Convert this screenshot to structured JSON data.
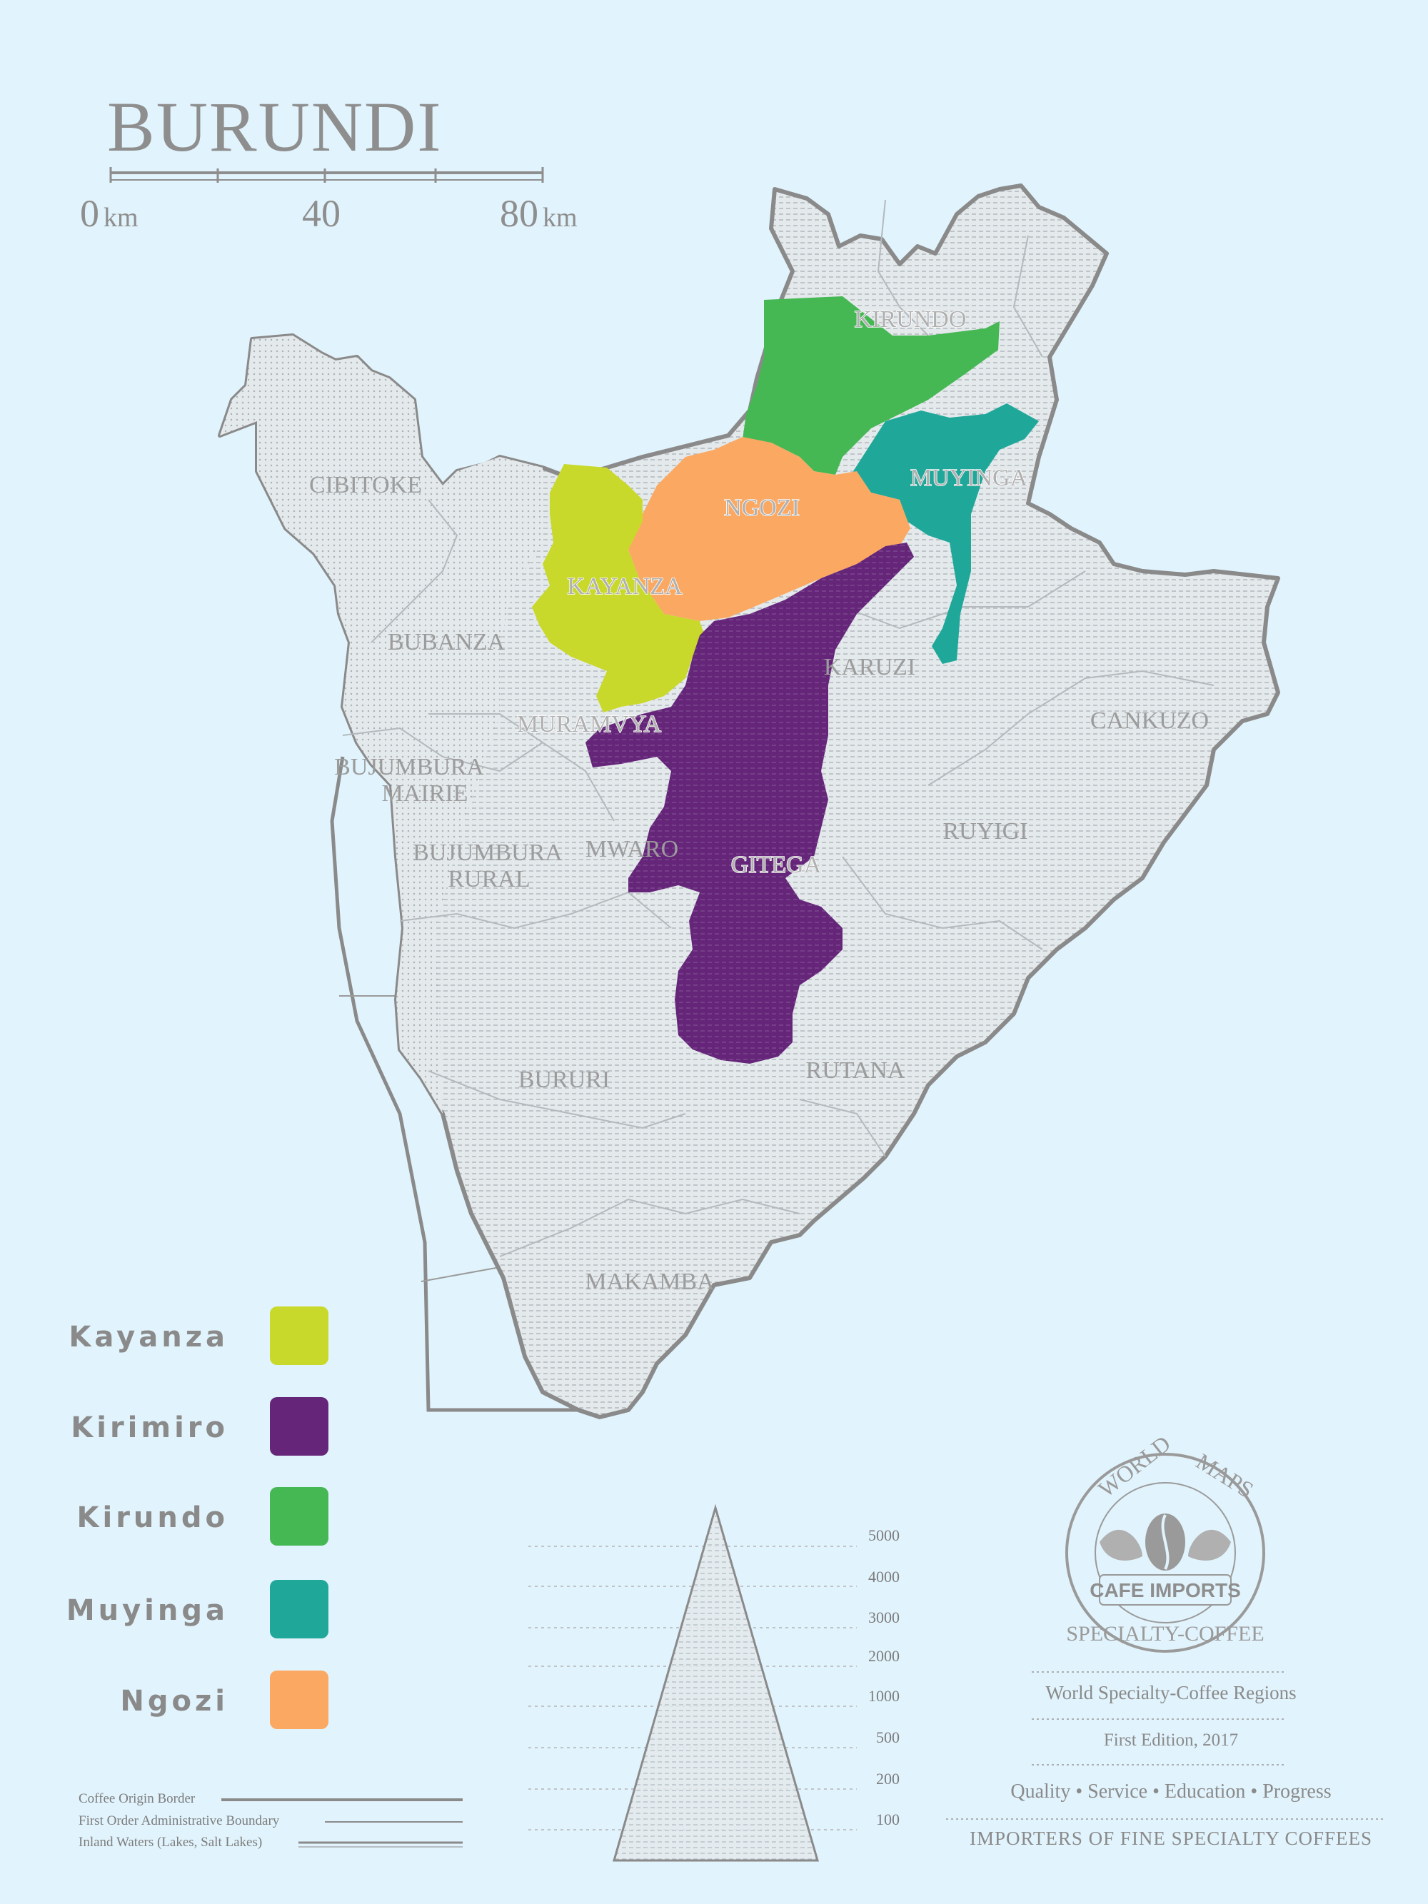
{
  "title": "BURUNDI",
  "scale_bar": {
    "labels": [
      {
        "value": "0",
        "unit": "km"
      },
      {
        "value": "40",
        "unit": ""
      },
      {
        "value": "80",
        "unit": "km"
      }
    ]
  },
  "provinces": [
    "CIBITOKE",
    "BUBANZA",
    "BUJUMBURA",
    "MAIRIE",
    "BUJUMBURA",
    "RURAL",
    "MWARO",
    "BURURI",
    "MAKAMBA",
    "RUTANA",
    "RUYIGI",
    "CANKUZO",
    "KARUZI"
  ],
  "highlighted_provinces": {
    "kirundo": "KIRUNDO",
    "muyinga": "MUYINGA",
    "ngozi": "NGOZI",
    "kayanza": "KAYANZA",
    "muramvya": "MURAMVYA",
    "gitega": "GITEGA"
  },
  "legend": [
    {
      "label": "Kayanza",
      "color": "#c9d92b"
    },
    {
      "label": "Kirimiro",
      "color": "#65267a"
    },
    {
      "label": "Kirundo",
      "color": "#45b854"
    },
    {
      "label": "Muyinga",
      "color": "#1fa89a"
    },
    {
      "label": "Ngozi",
      "color": "#fba962"
    }
  ],
  "map_key": [
    "Coffee Origin Border",
    "First Order Administrative Boundary",
    "Inland Waters (Lakes, Salt Lakes)"
  ],
  "elevation_levels": [
    "5000",
    "4000",
    "3000",
    "2000",
    "1000",
    "500",
    "200",
    "100"
  ],
  "logo": {
    "text_top_left": "WORLD",
    "text_top_right": "MAPS",
    "badge": "CAFE IMPORTS",
    "text_bottom": "SPECIALTY-COFFEE"
  },
  "info": {
    "line1": "World Specialty-Coffee Regions",
    "line2": "First Edition, 2017",
    "line3": "Quality • Service • Education • Progress",
    "line4": "IMPORTERS OF FINE SPECIALTY COFFEES"
  },
  "colors": {
    "background": "#e1f3fc",
    "land": "#dde3e8",
    "border": "#8a8a8a"
  }
}
